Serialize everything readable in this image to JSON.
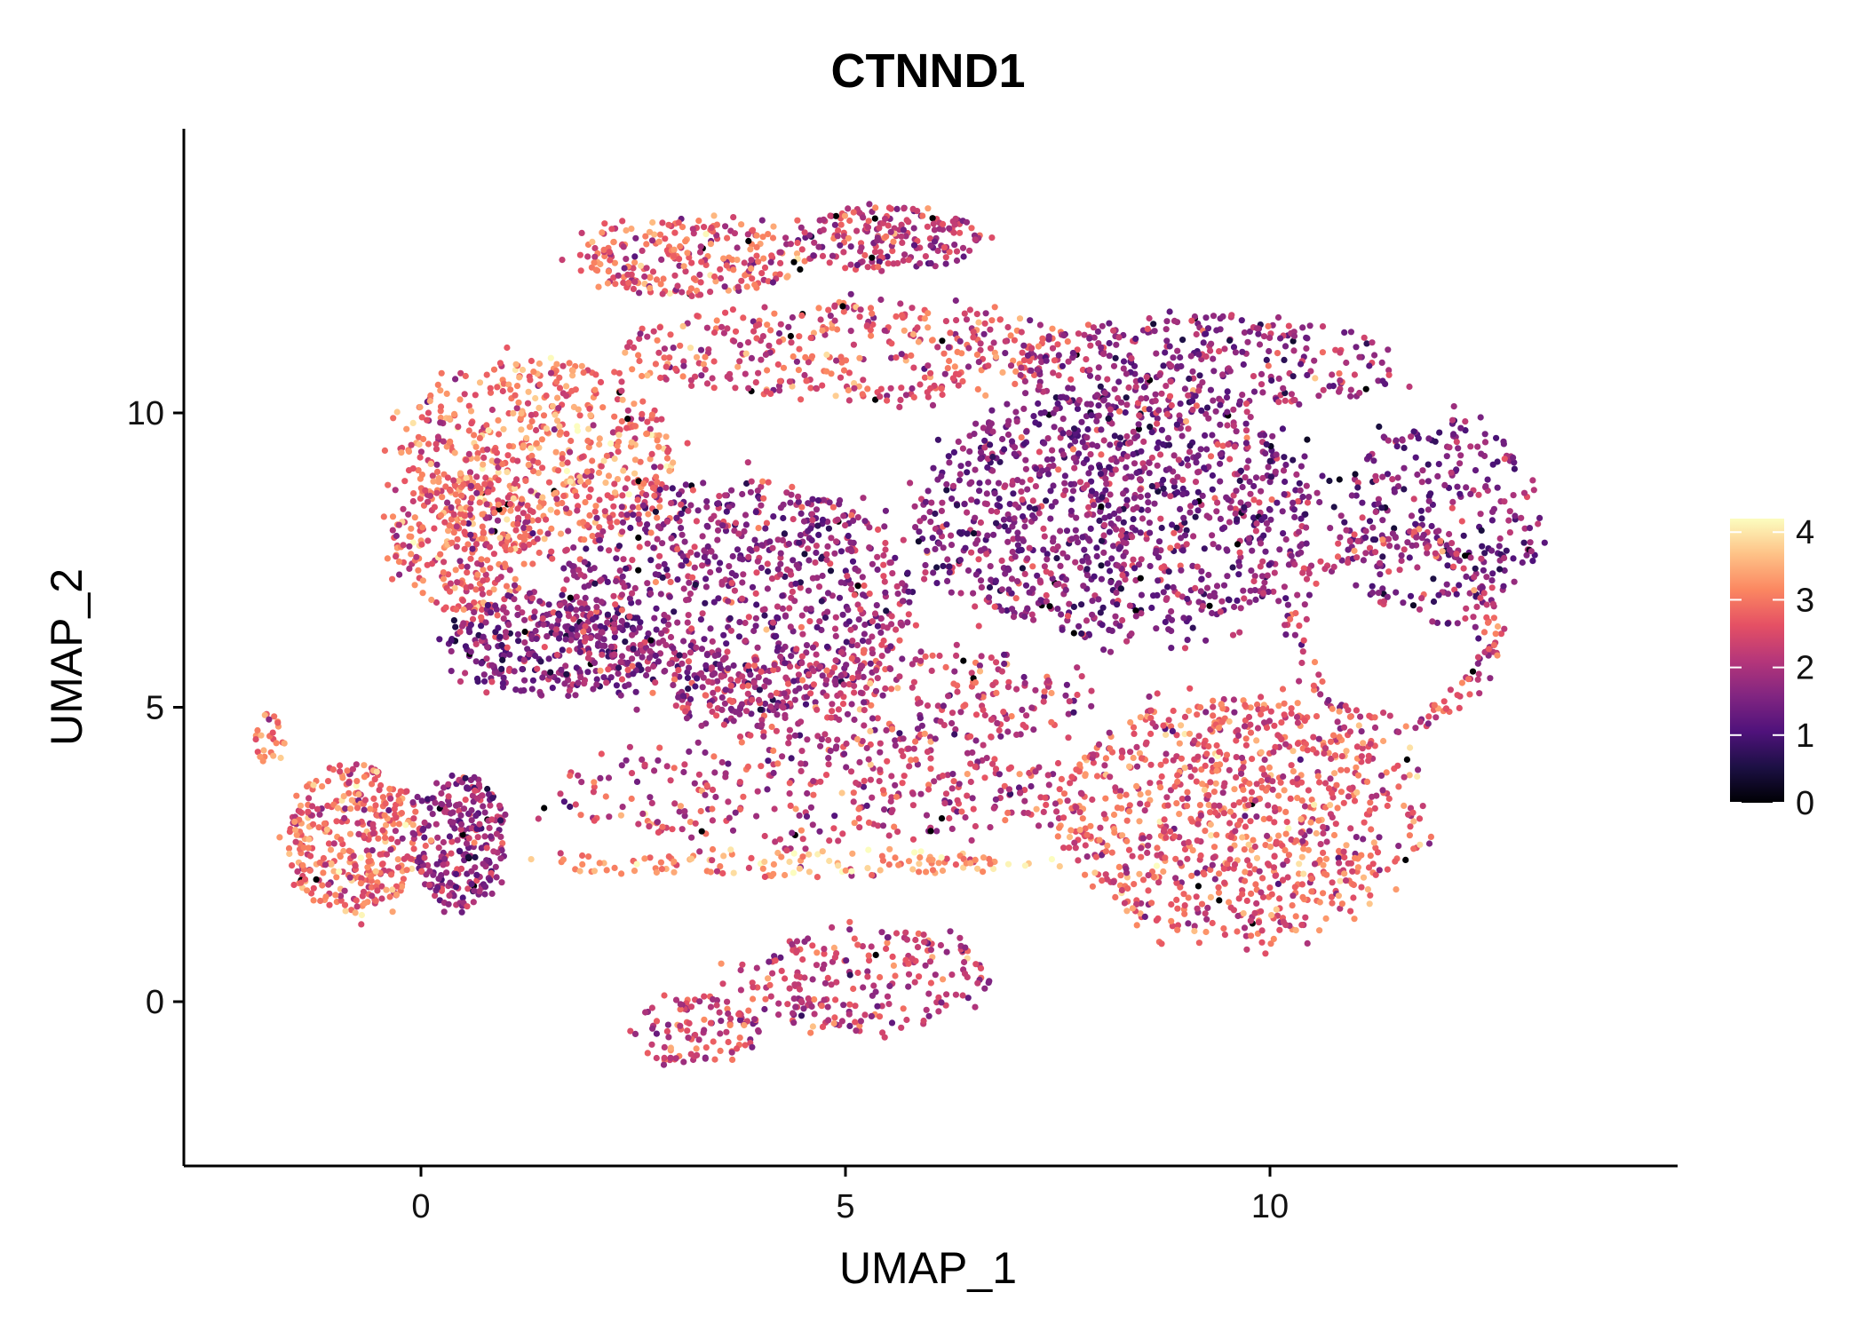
{
  "chart_data": {
    "type": "scatter",
    "title": "CTNND1",
    "xlabel": "UMAP_1",
    "ylabel": "UMAP_2",
    "xlim": [
      -2.8,
      14.8
    ],
    "ylim": [
      -2.8,
      14.8
    ],
    "xticks": [
      0,
      5,
      10
    ],
    "yticks": [
      0,
      5,
      10
    ],
    "xtick_labels": [
      "0",
      "5",
      "10"
    ],
    "ytick_labels": [
      "0",
      "5",
      "10"
    ],
    "grid": false,
    "color_scale": {
      "name": "magma",
      "min": 0,
      "max": 4.2,
      "ticks": [
        0,
        1,
        2,
        3,
        4
      ],
      "tick_labels": [
        "0",
        "1",
        "2",
        "3",
        "4"
      ],
      "stops": [
        "#000004",
        "#1c1044",
        "#4f127b",
        "#812581",
        "#b5367a",
        "#e55064",
        "#fb8761",
        "#fec287",
        "#fcfdbf"
      ],
      "legend_position": "right"
    },
    "clusters": [
      {
        "region": "top-arc-left",
        "x": [
          1.8,
          4.6
        ],
        "y": [
          12.0,
          13.3
        ],
        "n": 260,
        "expr": 2.7
      },
      {
        "region": "top-arc-right",
        "x": [
          4.4,
          6.6
        ],
        "y": [
          12.4,
          13.5
        ],
        "n": 200,
        "expr": 2.1
      },
      {
        "region": "upper-band",
        "x": [
          2.4,
          7.8
        ],
        "y": [
          10.2,
          11.9
        ],
        "n": 380,
        "expr": 2.6
      },
      {
        "region": "upper-left-orange",
        "x": [
          -0.3,
          3.0
        ],
        "y": [
          7.6,
          10.9
        ],
        "n": 620,
        "expr": 2.9
      },
      {
        "region": "left-edge",
        "x": [
          -0.4,
          1.4
        ],
        "y": [
          6.6,
          9.0
        ],
        "n": 260,
        "expr": 2.7
      },
      {
        "region": "lower-left-purple",
        "x": [
          0.3,
          2.8
        ],
        "y": [
          5.2,
          6.9
        ],
        "n": 330,
        "expr": 1.6
      },
      {
        "region": "center-purple",
        "x": [
          1.6,
          5.8
        ],
        "y": [
          4.9,
          8.9
        ],
        "n": 900,
        "expr": 1.8
      },
      {
        "region": "right-dense-purple",
        "x": [
          5.8,
          10.6
        ],
        "y": [
          6.2,
          10.3
        ],
        "n": 1100,
        "expr": 1.6
      },
      {
        "region": "right-top",
        "x": [
          7.0,
          11.5
        ],
        "y": [
          9.9,
          11.7
        ],
        "n": 360,
        "expr": 1.8
      },
      {
        "region": "far-right-tip",
        "x": [
          10.8,
          13.2
        ],
        "y": [
          6.4,
          9.9
        ],
        "n": 300,
        "expr": 1.5
      },
      {
        "region": "right-ring",
        "x": [
          10.2,
          12.7
        ],
        "y": [
          4.6,
          8.0
        ],
        "n": 170,
        "expr": 2.3,
        "ring": true
      },
      {
        "region": "center-lower",
        "x": [
          3.0,
          7.8
        ],
        "y": [
          4.3,
          6.0
        ],
        "n": 330,
        "expr": 2.2
      },
      {
        "region": "lower-right-orange",
        "x": [
          7.5,
          11.7
        ],
        "y": [
          1.1,
          5.2
        ],
        "n": 950,
        "expr": 2.7
      },
      {
        "region": "middle-streaks",
        "x": [
          1.4,
          7.8
        ],
        "y": [
          2.7,
          4.4
        ],
        "n": 330,
        "expr": 2.2
      },
      {
        "region": "bright-streak",
        "x": [
          1.4,
          7.2
        ],
        "y": [
          2.1,
          2.6
        ],
        "n": 140,
        "expr": 3.3
      },
      {
        "region": "left-island-orange",
        "x": [
          -1.6,
          0.0
        ],
        "y": [
          1.5,
          4.1
        ],
        "n": 360,
        "expr": 2.8
      },
      {
        "region": "left-island-purple",
        "x": [
          -0.1,
          1.0
        ],
        "y": [
          1.6,
          3.9
        ],
        "n": 260,
        "expr": 1.7
      },
      {
        "region": "left-tail",
        "x": [
          -1.95,
          -1.6
        ],
        "y": [
          4.0,
          4.9
        ],
        "n": 25,
        "expr": 3.0
      },
      {
        "region": "bottom-island-left",
        "x": [
          2.5,
          4.0
        ],
        "y": [
          -1.1,
          0.1
        ],
        "n": 110,
        "expr": 2.3
      },
      {
        "region": "bottom-island-right",
        "x": [
          3.7,
          6.7
        ],
        "y": [
          -0.5,
          1.3
        ],
        "n": 230,
        "expr": 2.2
      }
    ]
  }
}
